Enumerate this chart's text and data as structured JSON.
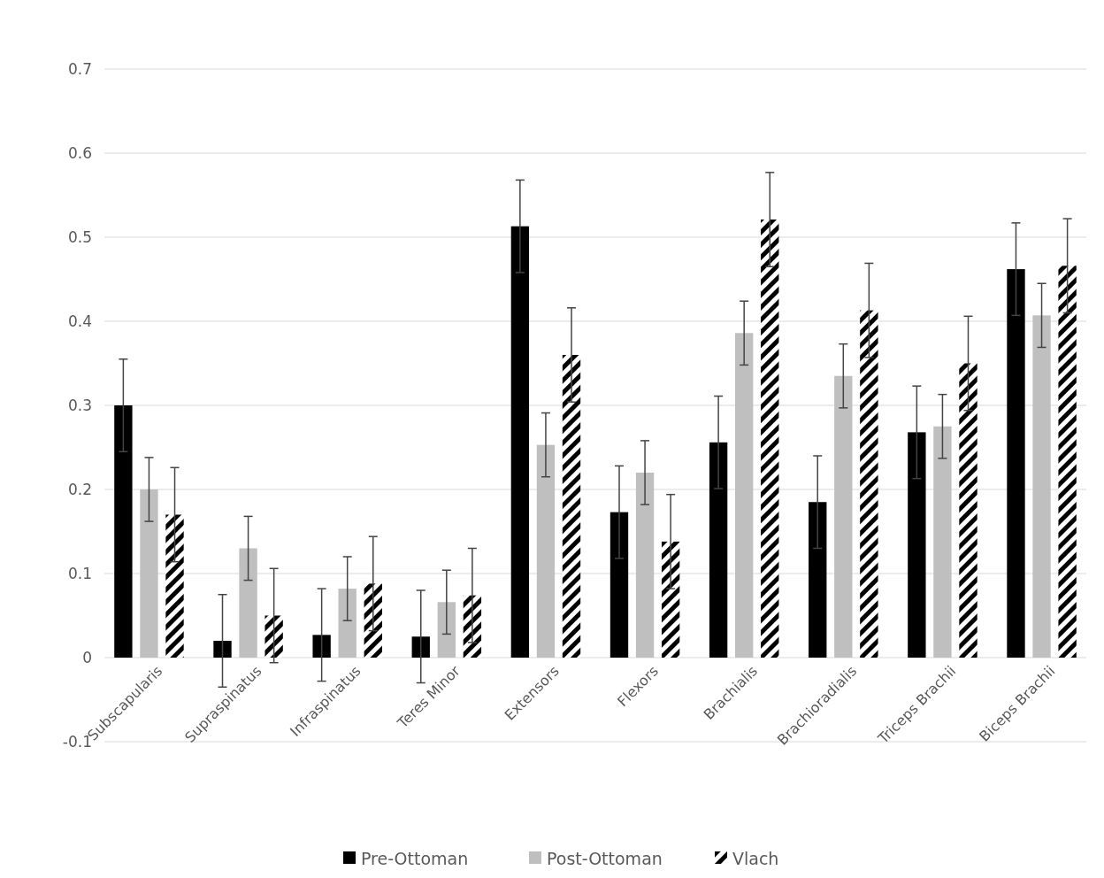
{
  "chart_data": {
    "type": "bar",
    "categories": [
      "Subscapularis",
      "Supraspinatus",
      "Infraspinatus",
      "Teres Minor",
      "Extensors",
      "Flexors",
      "Brachialis",
      "Brachioradialis",
      "Triceps Brachii",
      "Biceps Brachii"
    ],
    "series": [
      {
        "name": "Pre-Ottoman",
        "color": "#000000",
        "values": [
          0.3,
          0.02,
          0.027,
          0.025,
          0.513,
          0.173,
          0.256,
          0.185,
          0.268,
          0.462
        ],
        "errors": [
          0.055,
          0.055,
          0.055,
          0.055,
          0.055,
          0.055,
          0.055,
          0.055,
          0.055,
          0.055
        ]
      },
      {
        "name": "Post-Ottoman",
        "color": "#bfbfbf",
        "values": [
          0.2,
          0.13,
          0.082,
          0.066,
          0.253,
          0.22,
          0.386,
          0.335,
          0.275,
          0.407
        ],
        "errors": [
          0.038,
          0.038,
          0.038,
          0.038,
          0.038,
          0.038,
          0.038,
          0.038,
          0.038,
          0.038
        ]
      },
      {
        "name": "Vlach",
        "color": "#000000",
        "values": [
          0.17,
          0.05,
          0.088,
          0.074,
          0.36,
          0.138,
          0.521,
          0.413,
          0.35,
          0.466
        ],
        "errors": [
          0.056,
          0.056,
          0.056,
          0.056,
          0.056,
          0.056,
          0.056,
          0.056,
          0.056,
          0.056
        ]
      }
    ],
    "ylim": [
      -0.1,
      0.7
    ],
    "yticks": [
      -0.1,
      0,
      0.1,
      0.2,
      0.3,
      0.4,
      0.5,
      0.6,
      0.7
    ],
    "grid": "y",
    "legend": "bottom"
  }
}
